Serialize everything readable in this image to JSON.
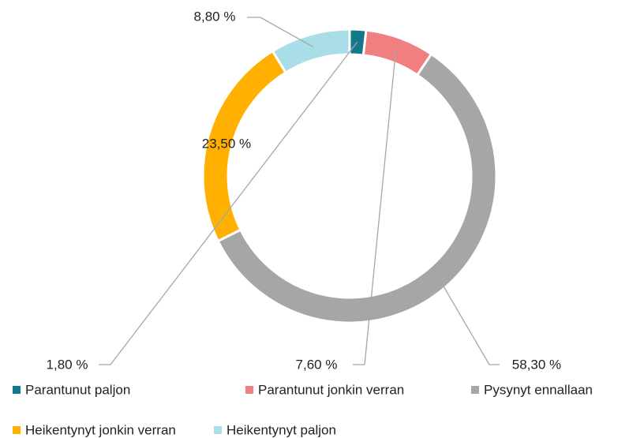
{
  "chart_data": {
    "type": "donut",
    "categories": [
      "Parantunut paljon",
      "Parantunut jonkin verran",
      "Pysynyt ennallaan",
      "Heikentynyt jonkin verran",
      "Heikentynyt paljon"
    ],
    "values": [
      1.8,
      7.6,
      58.3,
      23.5,
      8.8
    ],
    "value_labels": [
      "1,80 %",
      "7,60 %",
      "58,30 %",
      "23,50 %",
      "8,80 %"
    ],
    "colors": [
      "#13788a",
      "#f08080",
      "#a6a6a6",
      "#ffb000",
      "#a9dde8"
    ],
    "legend": "bottom"
  }
}
